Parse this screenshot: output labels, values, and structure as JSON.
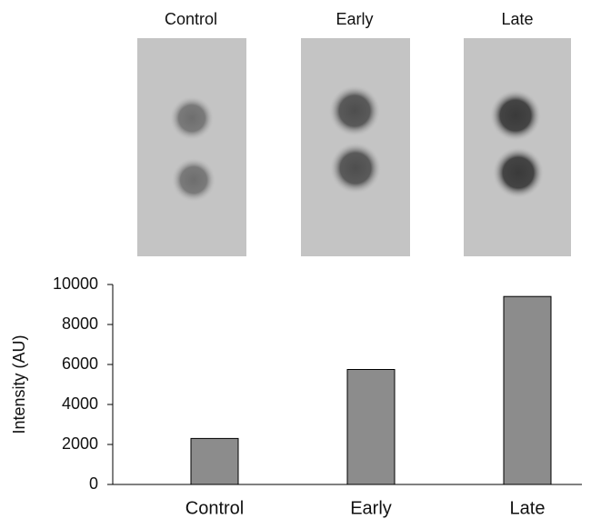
{
  "blot_panel": {
    "labels": [
      "Control",
      "Early",
      "Late"
    ]
  },
  "chart_data": {
    "type": "bar",
    "ylabel": "Intensity (AU)",
    "categories": [
      "Control",
      "Early",
      "Late"
    ],
    "values": [
      2300,
      5750,
      9400
    ],
    "color": "#8c8c8c",
    "ylim": [
      0,
      10000
    ],
    "yticks": [
      0,
      2000,
      4000,
      6000,
      8000,
      10000
    ],
    "grid": false
  }
}
